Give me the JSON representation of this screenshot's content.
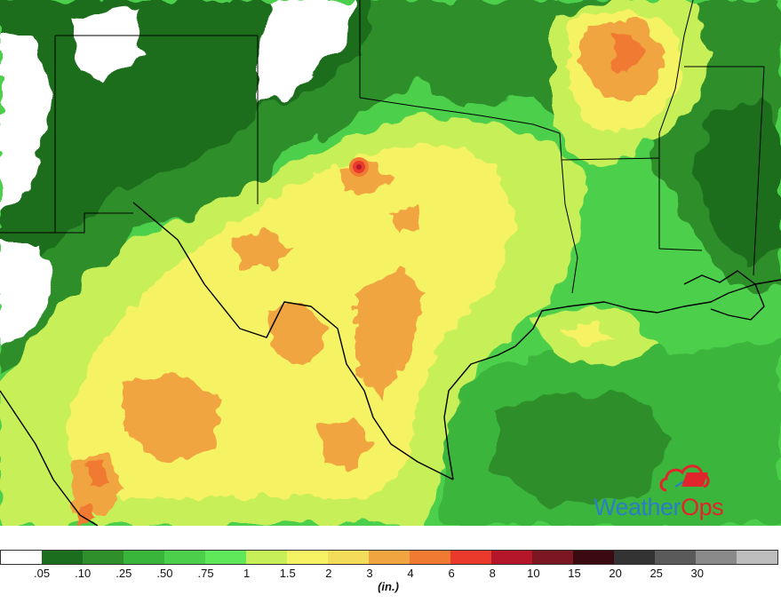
{
  "map": {
    "layer": "precipitation",
    "colors": {
      "none": "#ffffff",
      "c05": "#1b6e1e",
      "c10": "#2e8f2b",
      "c25": "#3ab53b",
      "c50": "#4cd04c",
      "c75": "#c6ef58",
      "c1": "#f5f263",
      "c15": "#f2dc59",
      "c2": "#f0a540",
      "c3": "#f07a32",
      "c4": "#ea3a2b",
      "c6": "#b5162a",
      "c8": "#7b1623",
      "c10in": "#3a0a10",
      "border": "#000000"
    }
  },
  "logo": {
    "text_weather": "Weather",
    "text_ops": "Ops",
    "brand_blue": "#2a7fc4",
    "brand_red": "#e0262c"
  },
  "legend": {
    "units": "(in.)",
    "swatches": [
      {
        "color": "#ffffff"
      },
      {
        "color": "#1b6e1e"
      },
      {
        "color": "#2e8f2b"
      },
      {
        "color": "#3ab53b"
      },
      {
        "color": "#4cd04c"
      },
      {
        "color": "#5ee85a"
      },
      {
        "color": "#c6ef58"
      },
      {
        "color": "#f5f263"
      },
      {
        "color": "#f2dc59"
      },
      {
        "color": "#f0a540"
      },
      {
        "color": "#f07a32"
      },
      {
        "color": "#ea3a2b"
      },
      {
        "color": "#b5162a"
      },
      {
        "color": "#7b1623"
      },
      {
        "color": "#3a0a10"
      },
      {
        "color": "#333333"
      },
      {
        "color": "#5a5a5a"
      },
      {
        "color": "#8a8a8a"
      },
      {
        "color": "#bdbdbd"
      }
    ],
    "ticks": [
      ".05",
      ".10",
      ".25",
      ".50",
      ".75",
      "1",
      "1.5",
      "2",
      "3",
      "4",
      "6",
      "8",
      "10",
      "15",
      "20",
      "25",
      "30"
    ]
  }
}
